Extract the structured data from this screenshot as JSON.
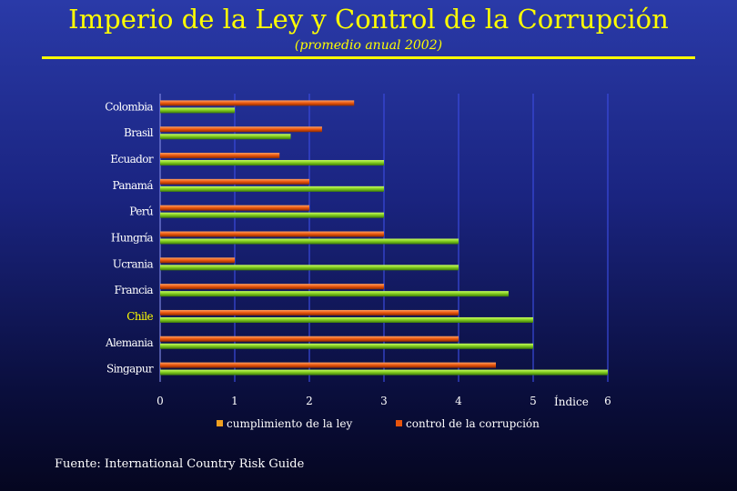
{
  "title": "Imperio de la Ley y Control de la Corrupción",
  "subtitle": "(promedio anual 2002)",
  "source": "Fuente: International Country Risk Guide",
  "colors": {
    "ley": "#7ec81e",
    "corrupcion": "#e8540c",
    "highlight_label": "#ffff00",
    "label": "#ffffff",
    "grid": "#3a4adc"
  },
  "chart_data": {
    "type": "bar",
    "orientation": "horizontal",
    "categories": [
      "Colombia",
      "Brasil",
      "Ecuador",
      "Panamá",
      "Perú",
      "Hungría",
      "Ucrania",
      "Francia",
      "Chile",
      "Alemania",
      "Singapur"
    ],
    "highlight_category": "Chile",
    "series": [
      {
        "name": "cumplimiento de la ley",
        "values": [
          1,
          1.75,
          3,
          3,
          3,
          4,
          4,
          4.67,
          5,
          5,
          6
        ]
      },
      {
        "name": "control de la corrupción",
        "values": [
          2.6,
          2.17,
          1.6,
          2,
          2,
          3,
          1,
          3,
          4,
          4,
          4.5
        ]
      }
    ],
    "xlabel": "Índice",
    "xlim": [
      0,
      6
    ],
    "xticks": [
      "0",
      "1",
      "2",
      "3",
      "4",
      "5",
      "6"
    ],
    "grid": true,
    "legend_position": "bottom"
  }
}
